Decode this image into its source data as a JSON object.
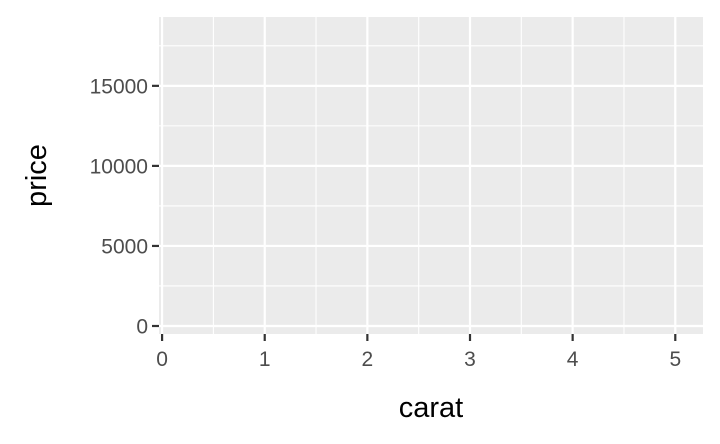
{
  "chart_data": {
    "type": "scatter",
    "xlabel": "carat",
    "ylabel": "price",
    "xlim": [
      -0.03,
      5.27
    ],
    "ylim": [
      -500,
      19300
    ],
    "x_ticks": [
      0,
      1,
      2,
      3,
      4,
      5
    ],
    "x_tick_labels": [
      "0",
      "1",
      "2",
      "3",
      "4",
      "5"
    ],
    "x_minor_ticks": [
      0.5,
      1.5,
      2.5,
      3.5,
      4.5
    ],
    "y_ticks": [
      0,
      5000,
      10000,
      15000
    ],
    "y_tick_labels": [
      "0",
      "5000",
      "10000",
      "15000"
    ],
    "y_minor_ticks": [
      2500,
      7500,
      12500,
      17500
    ],
    "points": [],
    "grid": true,
    "legend": "none",
    "colors": {
      "panel_background": "#ebebeb",
      "grid_line": "#ffffff",
      "tick_label": "#4d4d4d",
      "axis_title": "#000000",
      "axis_tick": "#333333"
    }
  }
}
